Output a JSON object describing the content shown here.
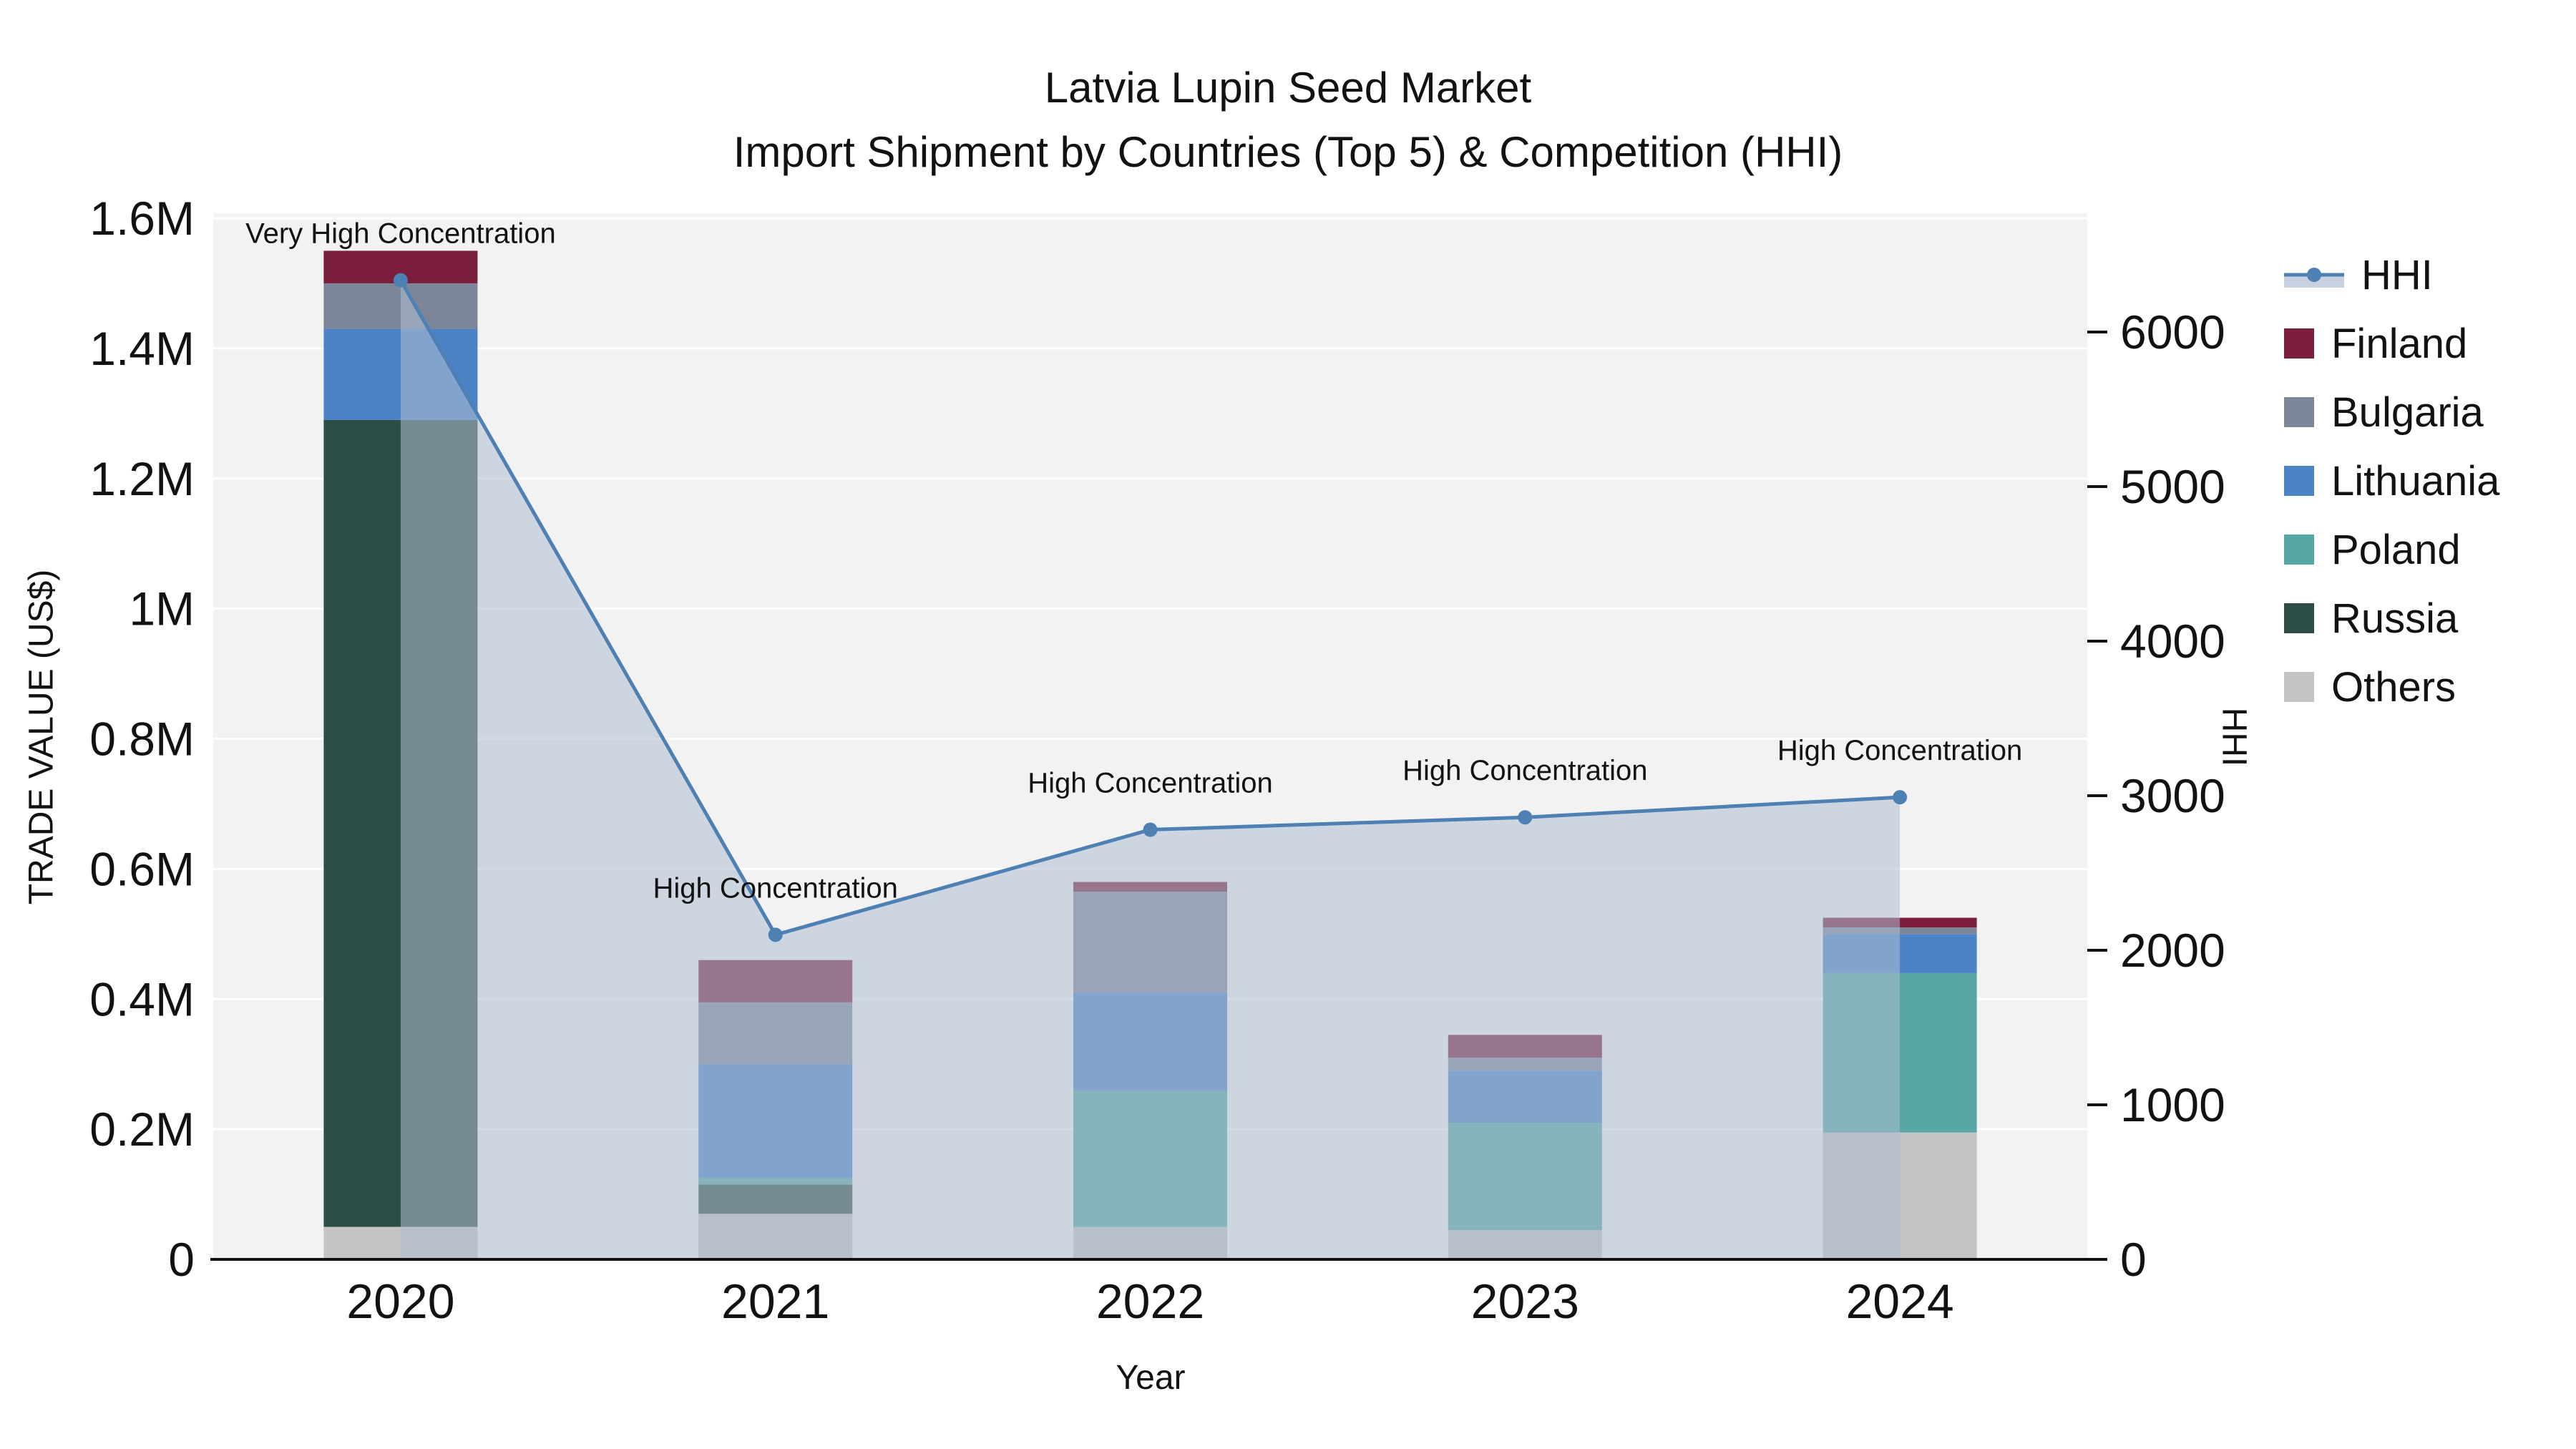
{
  "chart_data": {
    "type": "combo-stacked-bar-line",
    "title": "Latvia Lupin Seed Market",
    "subtitle": "Import Shipment by Countries (Top 5) & Competition (HHI)",
    "categories": [
      "2020",
      "2021",
      "2022",
      "2023",
      "2024"
    ],
    "x_axis": {
      "title": "Year"
    },
    "left_axis": {
      "title": "TRADE VALUE (US$)",
      "max": 1600000,
      "tick_values": [
        0,
        200000,
        400000,
        600000,
        800000,
        1000000,
        1200000,
        1400000,
        1600000
      ],
      "tick_labels": [
        "0",
        "0.2M",
        "0.4M",
        "0.6M",
        "0.8M",
        "1M",
        "1.2M",
        "1.4M",
        "1.6M"
      ]
    },
    "right_axis": {
      "title": "HHI",
      "max": 6000,
      "tick_values": [
        0,
        1000,
        2000,
        3000,
        4000,
        5000,
        6000
      ],
      "tick_labels": [
        "0",
        "1000",
        "2000",
        "3000",
        "4000",
        "5000",
        "6000"
      ]
    },
    "bar_series": [
      {
        "name": "Others",
        "color": "#c4c4c4",
        "values": [
          50000,
          70000,
          50000,
          45000,
          195000
        ]
      },
      {
        "name": "Russia",
        "color": "#2d4e46",
        "values": [
          1240000,
          45000,
          0,
          0,
          0
        ]
      },
      {
        "name": "Poland",
        "color": "#56a7a3",
        "values": [
          0,
          10000,
          210000,
          165000,
          245000
        ]
      },
      {
        "name": "Lithuania",
        "color": "#4b83c6",
        "values": [
          140000,
          175000,
          150000,
          80000,
          60000
        ]
      },
      {
        "name": "Bulgaria",
        "color": "#7d8698",
        "values": [
          70000,
          95000,
          155000,
          20000,
          10000
        ]
      },
      {
        "name": "Finland",
        "color": "#7b1e3c",
        "values": [
          50000,
          65000,
          15000,
          35000,
          15000
        ]
      }
    ],
    "line_series": {
      "name": "HHI",
      "color": "#4d80b3",
      "area_fill": "#afbdd1",
      "area_opacity": 0.55,
      "values": [
        6335,
        2100,
        2780,
        2860,
        2990
      ]
    },
    "annotations": [
      {
        "category": "2020",
        "text": "Very High Concentration"
      },
      {
        "category": "2021",
        "text": "High Concentration"
      },
      {
        "category": "2022",
        "text": "High Concentration"
      },
      {
        "category": "2023",
        "text": "High Concentration"
      },
      {
        "category": "2024",
        "text": "High Concentration"
      }
    ],
    "plot_background": "#f2f2f2",
    "grid_color": "#ffffff",
    "axis_line_color": "#111111"
  },
  "legend": {
    "items": [
      {
        "label": "HHI",
        "type": "line",
        "color": "#4d80b3"
      },
      {
        "label": "Finland",
        "type": "swatch",
        "color": "#7b1e3c"
      },
      {
        "label": "Bulgaria",
        "type": "swatch",
        "color": "#7d8698"
      },
      {
        "label": "Lithuania",
        "type": "swatch",
        "color": "#4b83c6"
      },
      {
        "label": "Poland",
        "type": "swatch",
        "color": "#56a7a3"
      },
      {
        "label": "Russia",
        "type": "swatch",
        "color": "#2d4e46"
      },
      {
        "label": "Others",
        "type": "swatch",
        "color": "#c4c4c4"
      }
    ]
  }
}
